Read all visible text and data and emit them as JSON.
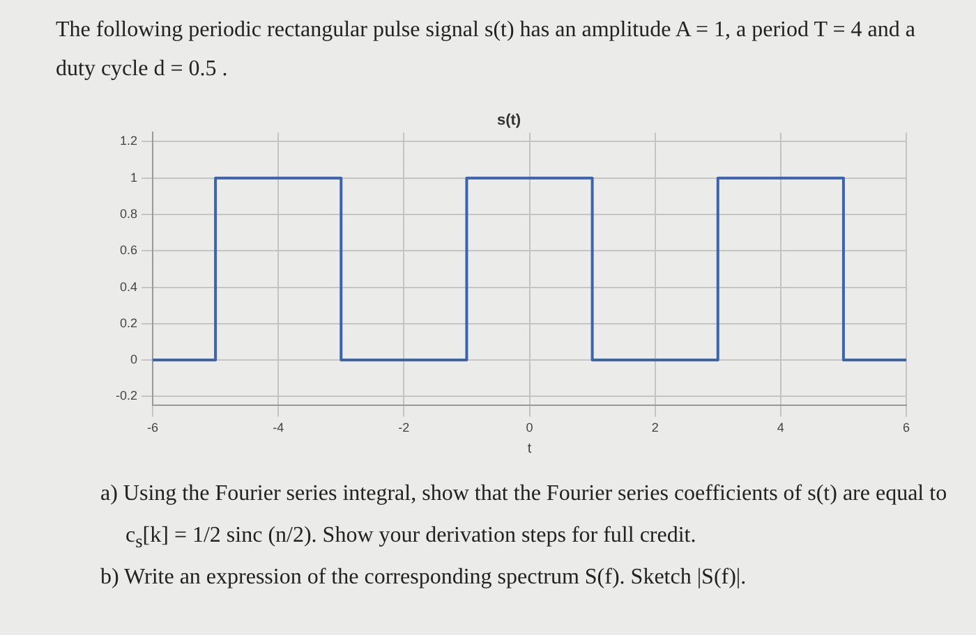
{
  "chart_data": {
    "type": "step",
    "title": "s(t)",
    "xlabel": "t",
    "x": [
      -6,
      -5,
      -3,
      -1,
      1,
      3,
      5,
      6
    ],
    "series": [
      {
        "color": "#3b64ae",
        "values": [
          0,
          1,
          0,
          1,
          0,
          1,
          0,
          0
        ]
      }
    ],
    "xlim": [
      -6,
      6
    ],
    "xticks": [
      -6,
      -4,
      -2,
      0,
      2,
      4,
      6
    ],
    "ylim": [
      -0.25,
      1.25
    ],
    "yticks": [
      -0.2,
      0,
      0.2,
      0.4,
      0.6,
      0.8,
      1,
      1.2
    ],
    "grid": true,
    "legend": false,
    "marker": "none",
    "line_style": "solid",
    "annotations": [
      "The following periodic rectangular pulse signal s(t) has an amplitude A = 1, a period T = 4 and a duty cycle d = 0.5 .",
      "a) Using the Fourier series integral, show that the Fourier series coefficients of s(t) are equal to c$_{s}$[k] = 1/2 sinc (n/2). Show your derivation steps for full credit.",
      "b) Write an expression of the corresponding spectrum S(f). Sketch |S(f)|."
    ]
  }
}
